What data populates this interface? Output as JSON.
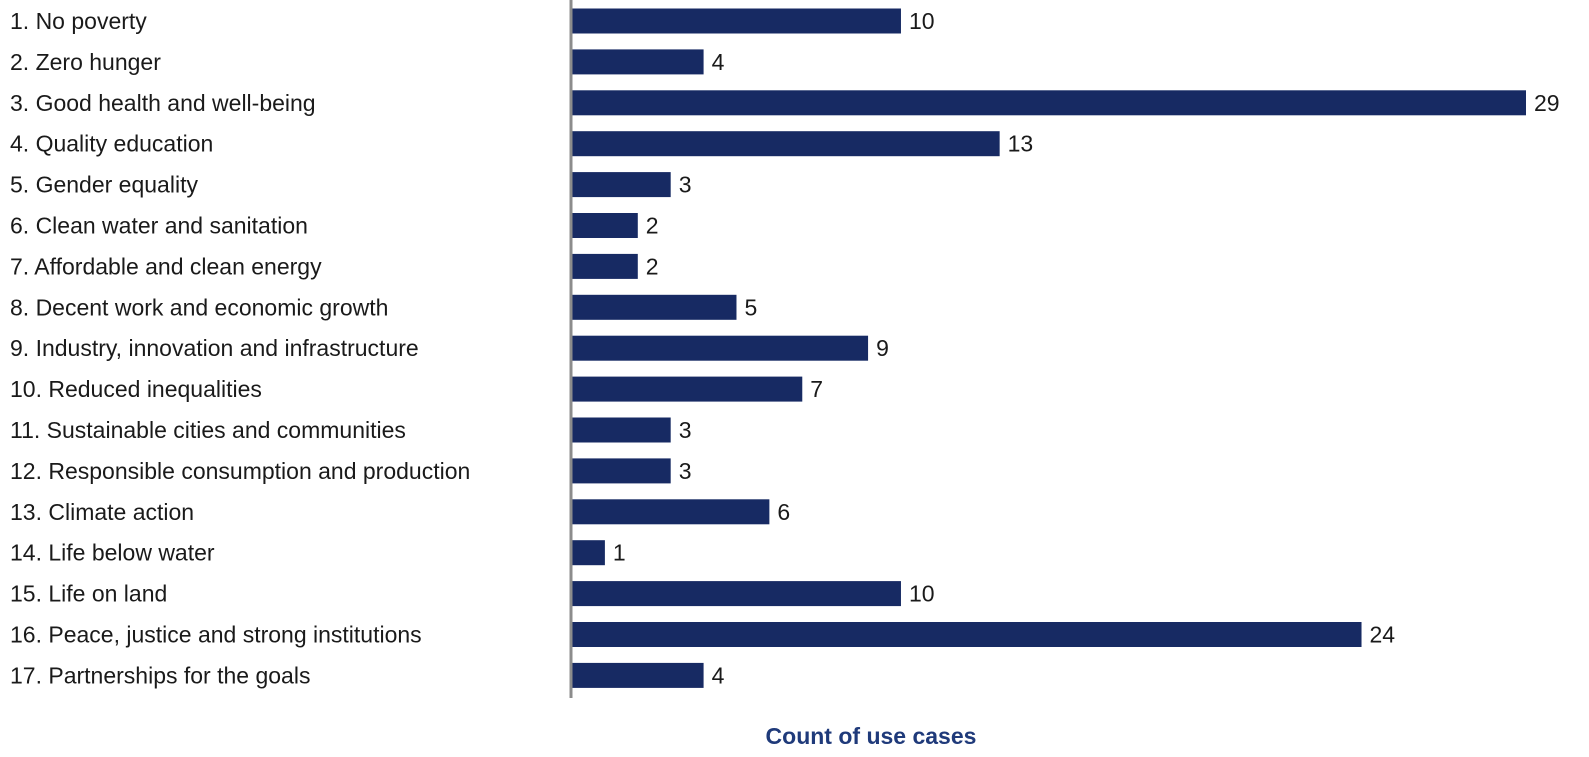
{
  "chart_data": {
    "type": "bar",
    "orientation": "horizontal",
    "categories": [
      "1. No poverty",
      "2. Zero hunger",
      "3. Good health and well-being",
      "4. Quality education",
      "5. Gender equality",
      "6. Clean water and sanitation",
      "7. Affordable and clean energy",
      "8. Decent work and economic growth",
      "9. Industry,  innovation and infrastructure",
      "10. Reduced inequalities",
      "11. Sustainable cities and communities",
      "12. Responsible consumption and production",
      "13. Climate action",
      "14. Life below water",
      "15. Life on land",
      "16. Peace, justice and strong institutions",
      "17. Partnerships for the goals"
    ],
    "values": [
      10,
      4,
      29,
      13,
      3,
      2,
      2,
      5,
      9,
      7,
      3,
      3,
      6,
      1,
      10,
      24,
      4
    ],
    "title": "",
    "xlabel": "Count of use cases",
    "ylabel": "",
    "xlim": [
      0,
      29
    ],
    "grid": false,
    "legend": "none",
    "bar_color": "#172a63",
    "axis_title_color": "#1f3a7a",
    "axis_line_color": "#8c8c8c"
  }
}
